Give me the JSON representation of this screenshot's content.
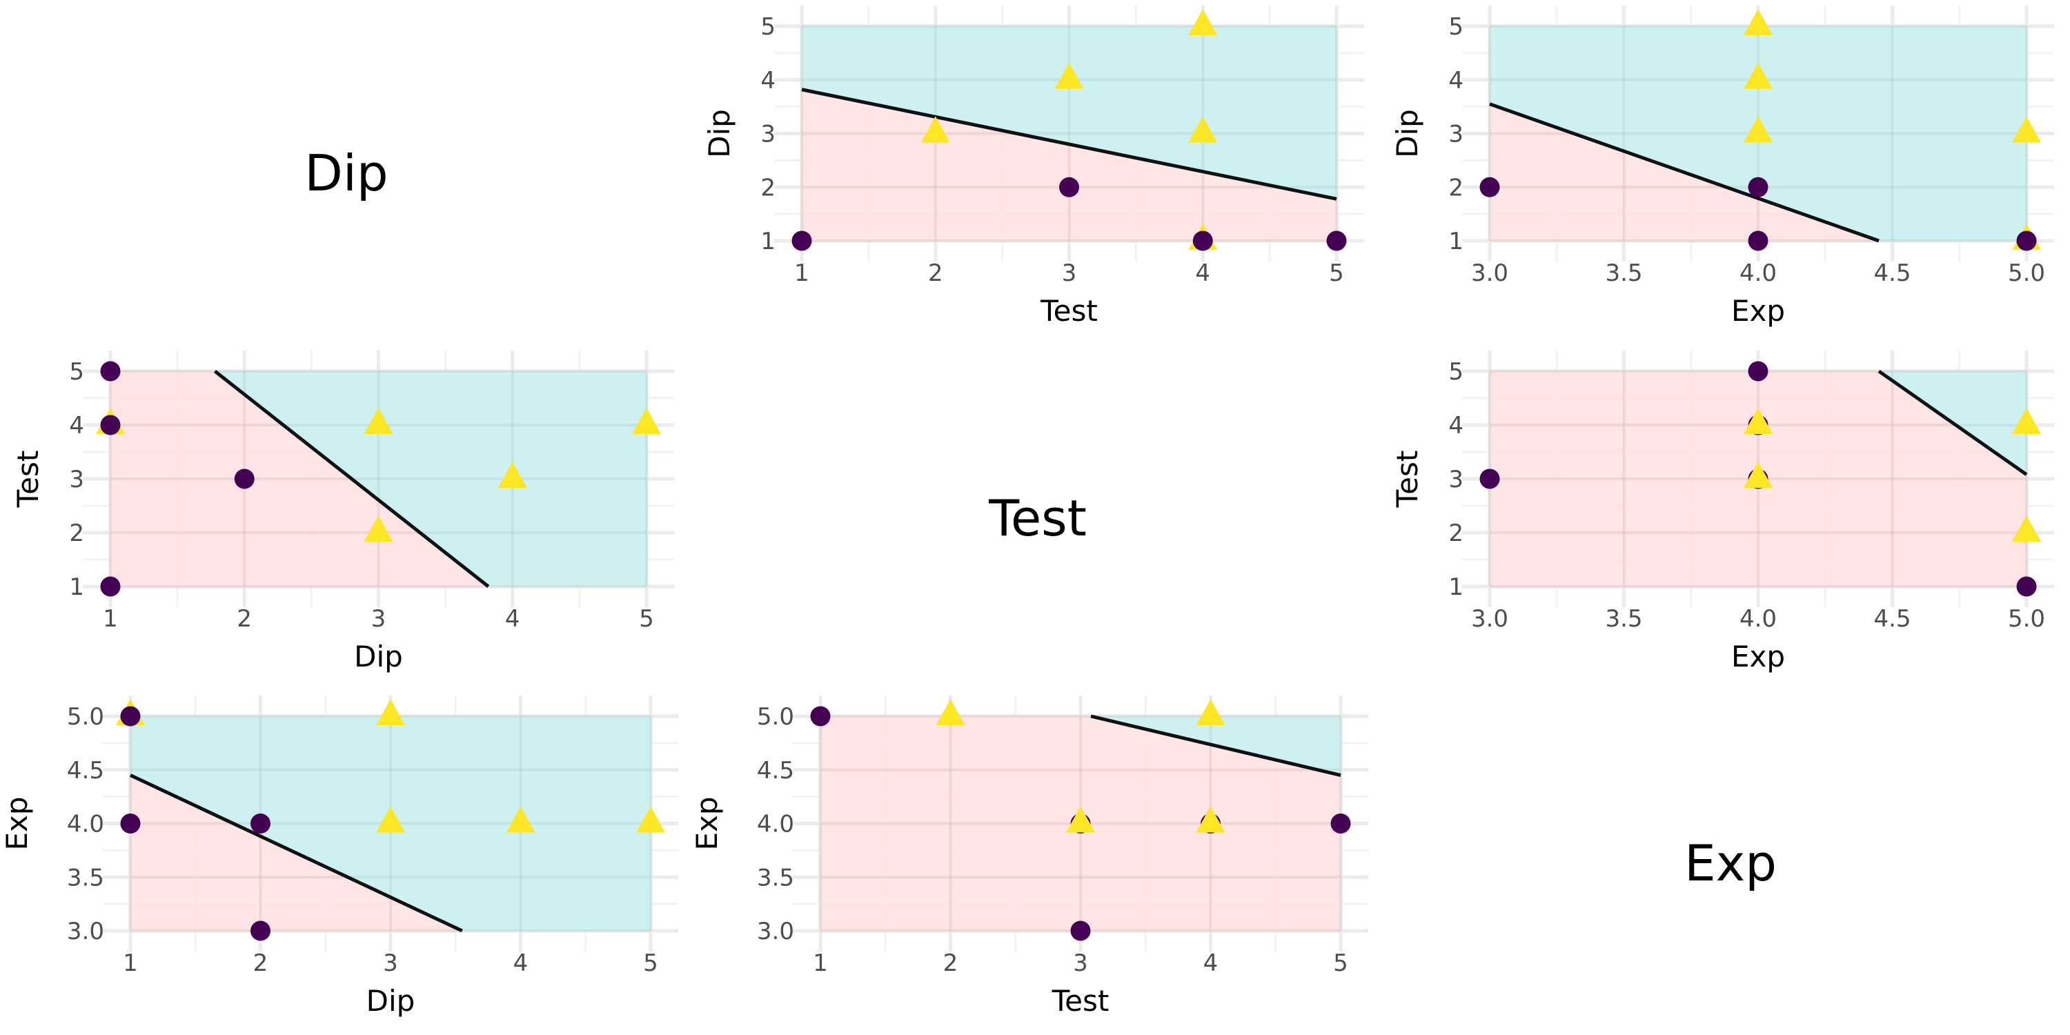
{
  "colors": {
    "region_low": "#FFE0E1",
    "region_high": "#CBF0F1",
    "class_0": "#440154",
    "class_1": "#FDE725",
    "boundary": "#111111",
    "grid_major": "#EBEBEB",
    "grid_minor": "#F2F2F2"
  },
  "chart_data": {
    "type": "scatter",
    "layout": "pairs-matrix 3x3",
    "variables": [
      "Dip",
      "Test",
      "Exp"
    ],
    "diagonal_labels": [
      "Dip",
      "Test",
      "Exp"
    ],
    "legend": "none",
    "grid": true,
    "panels": [
      {
        "id": "r1c2",
        "row": 1,
        "col": 2,
        "xlabel": "Test",
        "ylabel": "Dip",
        "xlim": [
          1,
          5
        ],
        "ylim": [
          1,
          5
        ],
        "xticks": [
          "1",
          "2",
          "3",
          "4",
          "5"
        ],
        "xtick_values": [
          1,
          2,
          3,
          4,
          5
        ],
        "yticks": [
          "1",
          "2",
          "3",
          "4",
          "5"
        ],
        "ytick_values": [
          1,
          2,
          3,
          4,
          5
        ],
        "boundary": [
          [
            1,
            3.82
          ],
          [
            5,
            1.78
          ]
        ],
        "region_above": "high",
        "points": [
          {
            "x": 1,
            "y": 1,
            "class": 0
          },
          {
            "x": 3,
            "y": 2,
            "class": 0
          },
          {
            "x": 4,
            "y": 1,
            "class": 1
          },
          {
            "x": 4,
            "y": 1,
            "class": 0
          },
          {
            "x": 5,
            "y": 1,
            "class": 0
          },
          {
            "x": 2,
            "y": 3,
            "class": 1
          },
          {
            "x": 3,
            "y": 4,
            "class": 1
          },
          {
            "x": 4,
            "y": 5,
            "class": 1
          },
          {
            "x": 4,
            "y": 3,
            "class": 1
          }
        ]
      },
      {
        "id": "r1c3",
        "row": 1,
        "col": 3,
        "xlabel": "Exp",
        "ylabel": "Dip",
        "xlim": [
          3,
          5
        ],
        "ylim": [
          1,
          5
        ],
        "xticks": [
          "3.0",
          "3.5",
          "4.0",
          "4.5",
          "5.0"
        ],
        "xtick_values": [
          3,
          3.5,
          4,
          4.5,
          5
        ],
        "yticks": [
          "1",
          "2",
          "3",
          "4",
          "5"
        ],
        "ytick_values": [
          1,
          2,
          3,
          4,
          5
        ],
        "boundary": [
          [
            3.0,
            3.55
          ],
          [
            4.45,
            1.0
          ]
        ],
        "region_above": "high",
        "points": [
          {
            "x": 3,
            "y": 2,
            "class": 0
          },
          {
            "x": 4,
            "y": 2,
            "class": 0
          },
          {
            "x": 4,
            "y": 1,
            "class": 0
          },
          {
            "x": 5,
            "y": 1,
            "class": 1
          },
          {
            "x": 5,
            "y": 1,
            "class": 0
          },
          {
            "x": 4,
            "y": 5,
            "class": 1
          },
          {
            "x": 4,
            "y": 4,
            "class": 1
          },
          {
            "x": 4,
            "y": 3,
            "class": 1
          },
          {
            "x": 5,
            "y": 3,
            "class": 1
          }
        ]
      },
      {
        "id": "r2c1",
        "row": 2,
        "col": 1,
        "xlabel": "Dip",
        "ylabel": "Test",
        "xlim": [
          1,
          5
        ],
        "ylim": [
          1,
          5
        ],
        "xticks": [
          "1",
          "2",
          "3",
          "4",
          "5"
        ],
        "xtick_values": [
          1,
          2,
          3,
          4,
          5
        ],
        "yticks": [
          "1",
          "2",
          "3",
          "4",
          "5"
        ],
        "ytick_values": [
          1,
          2,
          3,
          4,
          5
        ],
        "boundary": [
          [
            1.78,
            5
          ],
          [
            3.82,
            1
          ]
        ],
        "region_above": "high",
        "points": [
          {
            "x": 1,
            "y": 5,
            "class": 0
          },
          {
            "x": 1,
            "y": 4,
            "class": 1
          },
          {
            "x": 1,
            "y": 4,
            "class": 0
          },
          {
            "x": 2,
            "y": 3,
            "class": 0
          },
          {
            "x": 1,
            "y": 1,
            "class": 0
          },
          {
            "x": 3,
            "y": 4,
            "class": 1
          },
          {
            "x": 5,
            "y": 4,
            "class": 1
          },
          {
            "x": 4,
            "y": 3,
            "class": 1
          },
          {
            "x": 3,
            "y": 2,
            "class": 1
          }
        ]
      },
      {
        "id": "r2c3",
        "row": 2,
        "col": 3,
        "xlabel": "Exp",
        "ylabel": "Test",
        "xlim": [
          3,
          5
        ],
        "ylim": [
          1,
          5
        ],
        "xticks": [
          "3.0",
          "3.5",
          "4.0",
          "4.5",
          "5.0"
        ],
        "xtick_values": [
          3,
          3.5,
          4,
          4.5,
          5
        ],
        "yticks": [
          "1",
          "2",
          "3",
          "4",
          "5"
        ],
        "ytick_values": [
          1,
          2,
          3,
          4,
          5
        ],
        "boundary": [
          [
            4.45,
            5
          ],
          [
            5.0,
            3.08
          ]
        ],
        "region_above": "high",
        "points": [
          {
            "x": 3,
            "y": 3,
            "class": 0
          },
          {
            "x": 4,
            "y": 5,
            "class": 0
          },
          {
            "x": 4,
            "y": 4,
            "class": 0
          },
          {
            "x": 4,
            "y": 4,
            "class": 1
          },
          {
            "x": 4,
            "y": 3,
            "class": 0
          },
          {
            "x": 4,
            "y": 3,
            "class": 1
          },
          {
            "x": 5,
            "y": 1,
            "class": 0
          },
          {
            "x": 5,
            "y": 4,
            "class": 1
          },
          {
            "x": 5,
            "y": 2,
            "class": 1
          }
        ]
      },
      {
        "id": "r3c1",
        "row": 3,
        "col": 1,
        "xlabel": "Dip",
        "ylabel": "Exp",
        "xlim": [
          1,
          5
        ],
        "ylim": [
          3,
          5
        ],
        "xticks": [
          "1",
          "2",
          "3",
          "4",
          "5"
        ],
        "xtick_values": [
          1,
          2,
          3,
          4,
          5
        ],
        "yticks": [
          "3.0",
          "3.5",
          "4.0",
          "4.5",
          "5.0"
        ],
        "ytick_values": [
          3,
          3.5,
          4,
          4.5,
          5
        ],
        "boundary": [
          [
            1,
            4.45
          ],
          [
            3.55,
            3.0
          ]
        ],
        "region_above": "high",
        "points": [
          {
            "x": 1,
            "y": 5,
            "class": 1
          },
          {
            "x": 1,
            "y": 5,
            "class": 0
          },
          {
            "x": 1,
            "y": 4,
            "class": 0
          },
          {
            "x": 2,
            "y": 4,
            "class": 0
          },
          {
            "x": 2,
            "y": 3,
            "class": 0
          },
          {
            "x": 3,
            "y": 5,
            "class": 1
          },
          {
            "x": 3,
            "y": 4,
            "class": 1
          },
          {
            "x": 4,
            "y": 4,
            "class": 1
          },
          {
            "x": 5,
            "y": 4,
            "class": 1
          }
        ]
      },
      {
        "id": "r3c2",
        "row": 3,
        "col": 2,
        "xlabel": "Test",
        "ylabel": "Exp",
        "xlim": [
          1,
          5
        ],
        "ylim": [
          3,
          5
        ],
        "xticks": [
          "1",
          "2",
          "3",
          "4",
          "5"
        ],
        "xtick_values": [
          1,
          2,
          3,
          4,
          5
        ],
        "yticks": [
          "3.0",
          "3.5",
          "4.0",
          "4.5",
          "5.0"
        ],
        "ytick_values": [
          3,
          3.5,
          4,
          4.5,
          5
        ],
        "boundary": [
          [
            3.08,
            5.0
          ],
          [
            5,
            4.45
          ]
        ],
        "region_above": "high",
        "points": [
          {
            "x": 1,
            "y": 5,
            "class": 0
          },
          {
            "x": 2,
            "y": 5,
            "class": 1
          },
          {
            "x": 4,
            "y": 5,
            "class": 1
          },
          {
            "x": 3,
            "y": 4,
            "class": 0
          },
          {
            "x": 3,
            "y": 4,
            "class": 1
          },
          {
            "x": 4,
            "y": 4,
            "class": 0
          },
          {
            "x": 4,
            "y": 4,
            "class": 1
          },
          {
            "x": 5,
            "y": 4,
            "class": 0
          },
          {
            "x": 3,
            "y": 3,
            "class": 0
          }
        ]
      }
    ]
  }
}
